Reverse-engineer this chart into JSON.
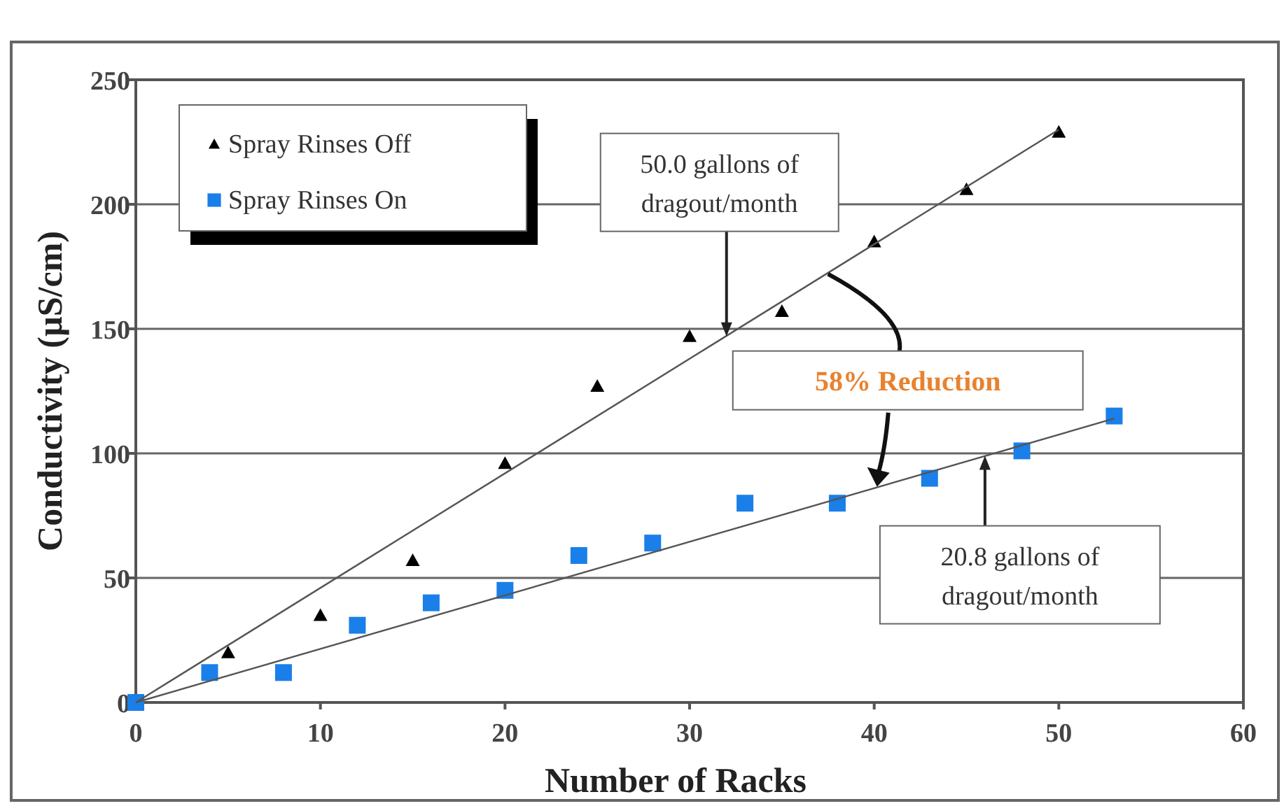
{
  "chart_data": {
    "type": "scatter",
    "xlabel": "Number of Racks",
    "ylabel": "Conductivity (µS/cm)",
    "xlim": [
      0,
      60
    ],
    "ylim": [
      0,
      250
    ],
    "xticks": [
      0,
      10,
      20,
      30,
      40,
      50,
      60
    ],
    "yticks": [
      0,
      50,
      100,
      150,
      200,
      250
    ],
    "grid": "y",
    "legend": "top left",
    "series": [
      {
        "name": "Spray Rinses Off",
        "color": "#000000",
        "marker": "triangle",
        "x": [
          5,
          10,
          15,
          20,
          25,
          30,
          35,
          40,
          45,
          50
        ],
        "values": [
          20,
          35,
          57,
          96,
          127,
          147,
          157,
          185,
          206,
          229
        ]
      },
      {
        "name": "Spray Rinses On",
        "color": "#1a7fe8",
        "marker": "square",
        "x": [
          0,
          4,
          8,
          12,
          16,
          20,
          24,
          28,
          33,
          38,
          43,
          48,
          53
        ],
        "values": [
          0,
          12,
          12,
          31,
          40,
          45,
          59,
          64,
          80,
          80,
          90,
          101,
          115
        ]
      },
      {
        "type": "line",
        "color": "#555555",
        "marker": "none",
        "x": [
          0,
          50
        ],
        "values": [
          0,
          230
        ]
      },
      {
        "type": "line",
        "color": "#555555",
        "marker": "none",
        "x": [
          0,
          53
        ],
        "values": [
          0,
          114
        ]
      }
    ],
    "annotations": [
      {
        "text": "50.0 gallons of\ndragout/month",
        "x": 32,
        "y": 147
      },
      {
        "text": "20.8 gallons of\ndragout/month",
        "x": 46,
        "y": 99
      },
      {
        "text": "58% Reduction",
        "x": 37.5,
        "y": 172
      }
    ]
  }
}
